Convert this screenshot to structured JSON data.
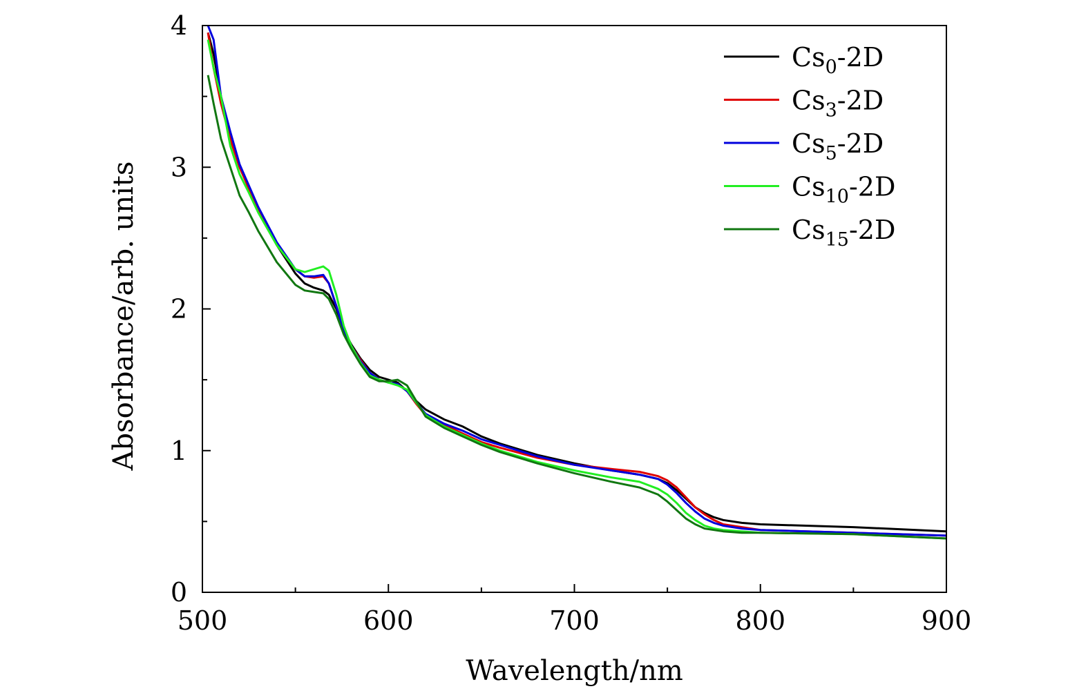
{
  "chart_data": {
    "type": "line",
    "title": "",
    "xlabel": "Wavelength/nm",
    "ylabel": "Absorbance/arb. units",
    "xlim": [
      500,
      900
    ],
    "ylim": [
      0,
      4
    ],
    "xticks": [
      500,
      600,
      700,
      800,
      900
    ],
    "yticks": [
      0,
      1,
      2,
      3,
      4
    ],
    "grid": false,
    "legend_position": "top-right",
    "series": [
      {
        "name": "Cs0-2D",
        "label_base": "Cs",
        "label_sub": "0",
        "label_suffix": "-2D",
        "color": "#000000",
        "x": [
          503,
          506,
          510,
          515,
          520,
          525,
          530,
          540,
          550,
          555,
          560,
          565,
          568,
          572,
          576,
          580,
          585,
          590,
          595,
          600,
          605,
          610,
          615,
          620,
          630,
          640,
          650,
          660,
          680,
          700,
          720,
          735,
          745,
          750,
          755,
          760,
          765,
          770,
          775,
          780,
          790,
          800,
          850,
          900
        ],
        "y": [
          3.95,
          3.8,
          3.5,
          3.2,
          3.0,
          2.85,
          2.7,
          2.45,
          2.25,
          2.18,
          2.15,
          2.13,
          2.1,
          2.0,
          1.85,
          1.75,
          1.65,
          1.57,
          1.52,
          1.5,
          1.48,
          1.42,
          1.35,
          1.29,
          1.22,
          1.17,
          1.1,
          1.05,
          0.97,
          0.91,
          0.86,
          0.83,
          0.8,
          0.77,
          0.72,
          0.66,
          0.6,
          0.56,
          0.53,
          0.51,
          0.49,
          0.48,
          0.46,
          0.43
        ]
      },
      {
        "name": "Cs3-2D",
        "label_base": "Cs",
        "label_sub": "3",
        "label_suffix": "-2D",
        "color": "#e00000",
        "x": [
          503,
          506,
          510,
          515,
          520,
          525,
          530,
          540,
          550,
          555,
          560,
          565,
          568,
          572,
          576,
          580,
          585,
          590,
          595,
          600,
          605,
          610,
          615,
          620,
          630,
          640,
          650,
          660,
          680,
          700,
          720,
          735,
          745,
          750,
          755,
          760,
          765,
          770,
          775,
          780,
          790,
          800,
          850,
          900
        ],
        "y": [
          3.95,
          3.7,
          3.45,
          3.2,
          3.0,
          2.85,
          2.7,
          2.45,
          2.28,
          2.23,
          2.22,
          2.23,
          2.18,
          2.02,
          1.85,
          1.74,
          1.64,
          1.55,
          1.5,
          1.48,
          1.47,
          1.42,
          1.33,
          1.25,
          1.18,
          1.12,
          1.06,
          1.02,
          0.95,
          0.9,
          0.87,
          0.85,
          0.82,
          0.79,
          0.74,
          0.67,
          0.6,
          0.55,
          0.51,
          0.48,
          0.46,
          0.44,
          0.42,
          0.4
        ]
      },
      {
        "name": "Cs5-2D",
        "label_base": "Cs",
        "label_sub": "5",
        "label_suffix": "-2D",
        "color": "#0000dd",
        "x": [
          503,
          506,
          510,
          515,
          520,
          525,
          530,
          540,
          550,
          555,
          560,
          565,
          568,
          572,
          576,
          580,
          585,
          590,
          595,
          600,
          605,
          610,
          615,
          620,
          630,
          640,
          650,
          660,
          680,
          700,
          720,
          735,
          745,
          750,
          755,
          760,
          765,
          770,
          775,
          780,
          790,
          800,
          850,
          900
        ],
        "y": [
          4.0,
          3.9,
          3.5,
          3.25,
          3.02,
          2.87,
          2.72,
          2.47,
          2.28,
          2.23,
          2.23,
          2.24,
          2.18,
          2.02,
          1.85,
          1.74,
          1.63,
          1.55,
          1.5,
          1.48,
          1.47,
          1.42,
          1.34,
          1.26,
          1.19,
          1.14,
          1.08,
          1.04,
          0.96,
          0.9,
          0.86,
          0.83,
          0.8,
          0.76,
          0.7,
          0.63,
          0.57,
          0.52,
          0.49,
          0.47,
          0.45,
          0.44,
          0.42,
          0.4
        ]
      },
      {
        "name": "Cs10-2D",
        "label_base": "Cs",
        "label_sub": "10",
        "label_suffix": "-2D",
        "color": "#22ee22",
        "x": [
          503,
          506,
          510,
          515,
          520,
          525,
          530,
          540,
          550,
          555,
          560,
          565,
          568,
          572,
          576,
          580,
          585,
          590,
          595,
          600,
          605,
          610,
          615,
          620,
          630,
          640,
          650,
          660,
          680,
          700,
          720,
          735,
          745,
          750,
          755,
          760,
          765,
          770,
          775,
          780,
          790,
          800,
          850,
          900
        ],
        "y": [
          3.9,
          3.7,
          3.5,
          3.15,
          2.95,
          2.82,
          2.68,
          2.45,
          2.28,
          2.26,
          2.28,
          2.3,
          2.27,
          2.1,
          1.88,
          1.74,
          1.62,
          1.53,
          1.5,
          1.48,
          1.46,
          1.43,
          1.34,
          1.25,
          1.17,
          1.11,
          1.05,
          1.0,
          0.92,
          0.86,
          0.81,
          0.78,
          0.73,
          0.69,
          0.63,
          0.56,
          0.51,
          0.47,
          0.45,
          0.44,
          0.43,
          0.42,
          0.41,
          0.38
        ]
      },
      {
        "name": "Cs15-2D",
        "label_base": "Cs",
        "label_sub": "15",
        "label_suffix": "-2D",
        "color": "#117711",
        "x": [
          503,
          506,
          510,
          515,
          520,
          525,
          530,
          540,
          550,
          555,
          560,
          565,
          568,
          572,
          576,
          580,
          585,
          590,
          595,
          600,
          605,
          610,
          615,
          620,
          630,
          640,
          650,
          660,
          680,
          700,
          720,
          735,
          745,
          750,
          755,
          760,
          765,
          770,
          775,
          780,
          790,
          800,
          850,
          900
        ],
        "y": [
          3.65,
          3.45,
          3.2,
          3.0,
          2.8,
          2.68,
          2.55,
          2.33,
          2.17,
          2.13,
          2.12,
          2.11,
          2.07,
          1.96,
          1.82,
          1.72,
          1.61,
          1.52,
          1.49,
          1.49,
          1.5,
          1.46,
          1.35,
          1.24,
          1.16,
          1.1,
          1.04,
          0.99,
          0.91,
          0.84,
          0.78,
          0.74,
          0.69,
          0.64,
          0.58,
          0.52,
          0.48,
          0.45,
          0.44,
          0.43,
          0.42,
          0.42,
          0.41,
          0.38
        ]
      }
    ]
  }
}
